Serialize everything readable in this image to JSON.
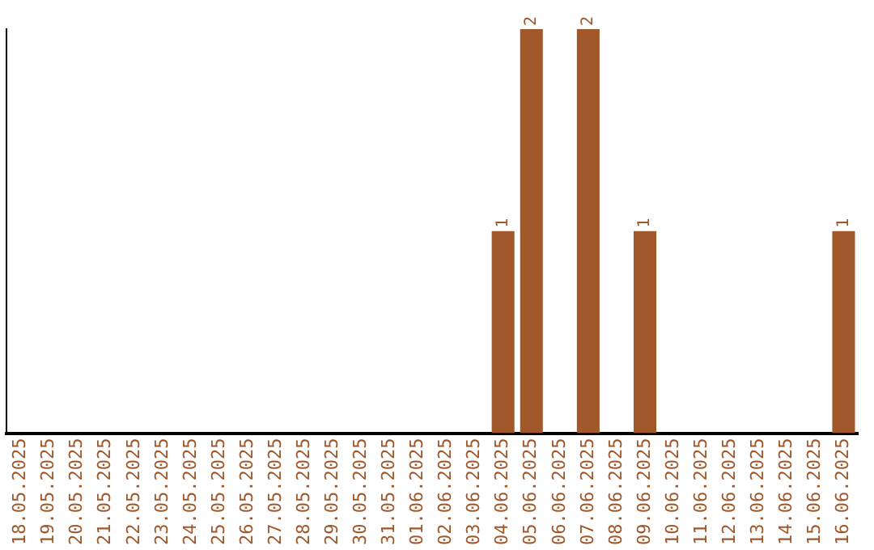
{
  "chart_data": {
    "type": "bar",
    "categories": [
      "18.05.2025",
      "19.05.2025",
      "20.05.2025",
      "21.05.2025",
      "22.05.2025",
      "23.05.2025",
      "24.05.2025",
      "25.05.2025",
      "26.05.2025",
      "27.05.2025",
      "28.05.2025",
      "29.05.2025",
      "30.05.2025",
      "31.05.2025",
      "01.06.2025",
      "02.06.2025",
      "03.06.2025",
      "04.06.2025",
      "05.06.2025",
      "06.06.2025",
      "07.06.2025",
      "08.06.2025",
      "09.06.2025",
      "10.06.2025",
      "11.06.2025",
      "12.06.2025",
      "13.06.2025",
      "14.06.2025",
      "15.06.2025",
      "16.06.2025"
    ],
    "values": [
      null,
      null,
      null,
      null,
      null,
      null,
      null,
      null,
      null,
      null,
      null,
      null,
      null,
      null,
      null,
      null,
      null,
      1,
      2,
      null,
      2,
      null,
      1,
      null,
      null,
      null,
      null,
      null,
      null,
      1
    ],
    "value_labels": [
      null,
      null,
      null,
      null,
      null,
      null,
      null,
      null,
      null,
      null,
      null,
      null,
      null,
      null,
      null,
      null,
      null,
      "1",
      "2",
      null,
      "2",
      null,
      "1",
      null,
      null,
      null,
      null,
      null,
      null,
      "1"
    ],
    "color": "#a0572a",
    "grid": false,
    "legend": false,
    "tick_labels": "x"
  }
}
